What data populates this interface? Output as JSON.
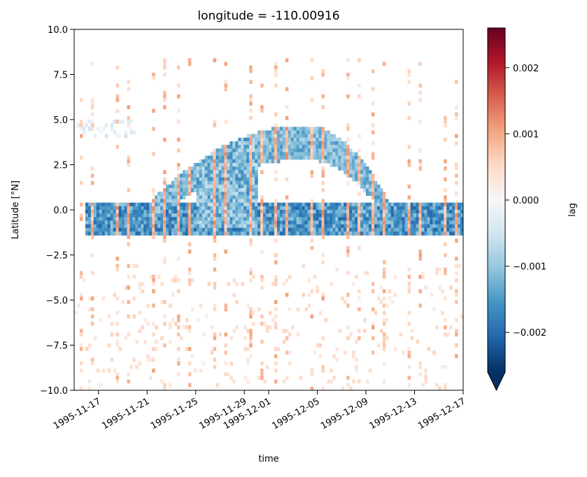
{
  "chart_data": {
    "type": "heatmap",
    "title": "longitude = -110.00916",
    "xlabel": "time",
    "ylabel": "Latitude [°N]",
    "colorbar_label": "lag",
    "colormap": "RdBu_r",
    "colorbar_extend": "min",
    "xlim": [
      "1995-11-15",
      "1995-12-17"
    ],
    "ylim": [
      -10.0,
      10.0
    ],
    "clim": [
      -0.0026,
      0.0026
    ],
    "x_ticks": [
      "1995-11-17",
      "1995-11-21",
      "1995-11-25",
      "1995-11-29",
      "1995-12-01",
      "1995-12-05",
      "1995-12-09",
      "1995-12-13",
      "1995-12-17"
    ],
    "y_ticks": [
      "10.0",
      "7.5",
      "5.0",
      "2.5",
      "0.0",
      "−2.5",
      "−5.0",
      "−7.5",
      "−10.0"
    ],
    "colorbar_ticks": [
      "0.002",
      "0.001",
      "0.000",
      "−0.001",
      "−0.002"
    ],
    "grid": false,
    "features": [
      {
        "name": "equatorial negative band",
        "lat_center": -0.6,
        "lat_halfwidth": 0.9,
        "value": -0.0018
      },
      {
        "name": "northern arc",
        "lat_peak": 3.2,
        "time_peak": "1995-12-04",
        "value": -0.0012
      },
      {
        "name": "diurnal positive streaks",
        "value": 0.0009,
        "spacing_days": 1
      },
      {
        "name": "scattered southern positives",
        "lat_range": [
          -10,
          -3
        ],
        "value": 0.0004
      }
    ]
  }
}
